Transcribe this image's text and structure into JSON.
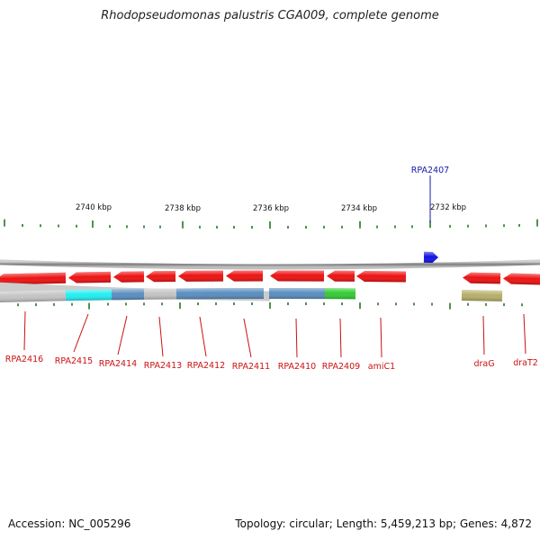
{
  "title": "Rhodopseudomonas palustris CGA009, complete genome",
  "footer": {
    "accession": "Accession: NC_005296",
    "stats": "Topology: circular; Length: 5,459,213 bp; Genes: 4,872"
  },
  "colors": {
    "forward_gene": "#1212e6",
    "reverse_gene": "#ee1111",
    "label_forward": "#1a1aaa",
    "label_reverse": "#cc1111",
    "tick": "#227722",
    "backbone": "#8a8a8a"
  },
  "scale": {
    "unit": "kbp",
    "major_ticks": [
      {
        "label": "2740 kbp"
      },
      {
        "label": "2738 kbp"
      },
      {
        "label": "2736 kbp"
      },
      {
        "label": "2734 kbp"
      },
      {
        "label": "2732 kbp"
      }
    ]
  },
  "forward_genes": [
    {
      "label": "RPA2407"
    }
  ],
  "reverse_genes": [
    {
      "label": "RPA2416",
      "cog_color": "#c4c4c4"
    },
    {
      "label": "RPA2415",
      "cog_color": "#22eef2"
    },
    {
      "label": "RPA2414",
      "cog_color": "#5a8ec0"
    },
    {
      "label": "RPA2413",
      "cog_color": "#c4c4c4"
    },
    {
      "label": "RPA2412",
      "cog_color": "#5a8ec0"
    },
    {
      "label": "RPA2411",
      "cog_color": "#5a8ec0"
    },
    {
      "label": "RPA2410",
      "cog_color": "#5a8ec0"
    },
    {
      "label": "RPA2409",
      "cog_color": "#33cc33"
    },
    {
      "label": "amiC1",
      "cog_color": ""
    },
    {
      "label": "draG",
      "cog_color": "#b6ae6a"
    },
    {
      "label": "draT2",
      "cog_color": ""
    }
  ]
}
